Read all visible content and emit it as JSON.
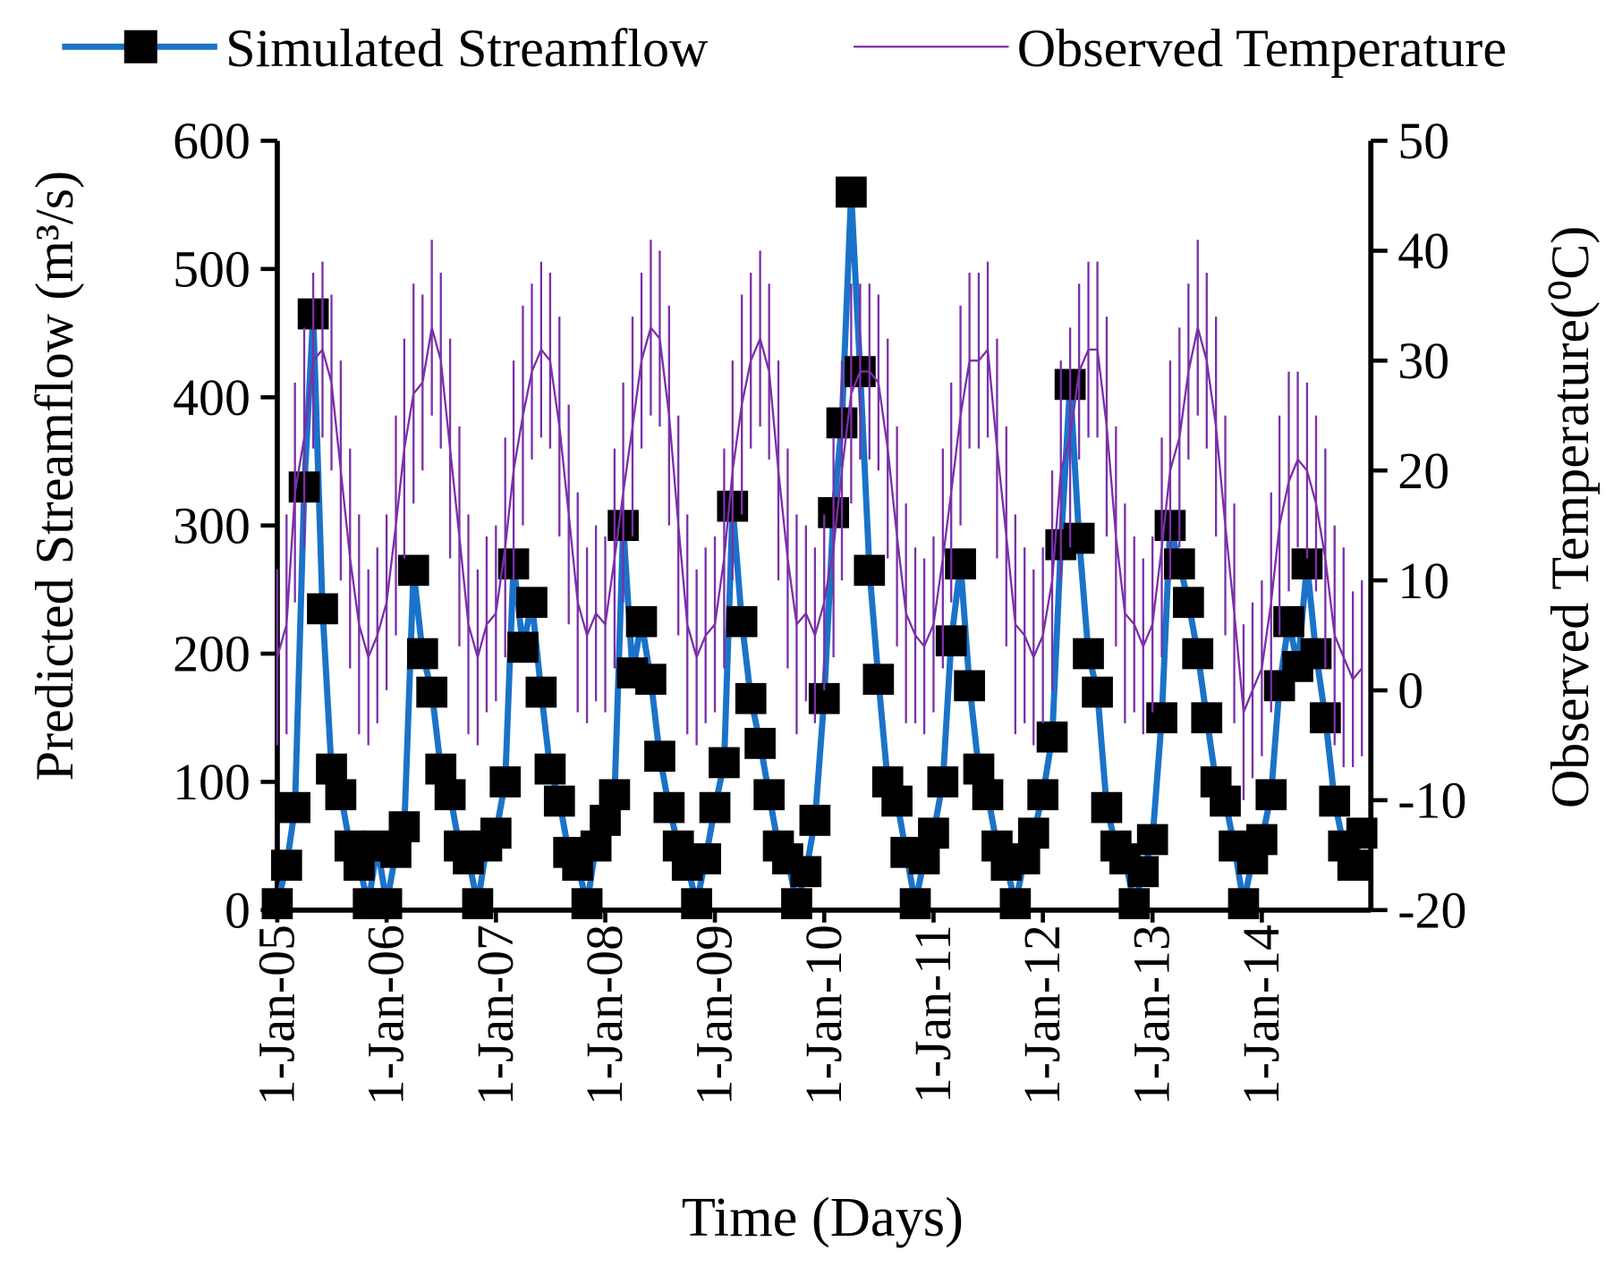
{
  "chart_data": {
    "type": "line",
    "xlabel": "Time (Days)",
    "ylabel": "Predicted Streamflow (m³/s)",
    "y2label": "Observed Temperature(⁰C)",
    "x": [
      "2005-01",
      "2005-02",
      "2005-03",
      "2005-04",
      "2005-05",
      "2005-06",
      "2005-07",
      "2005-08",
      "2005-09",
      "2005-10",
      "2005-11",
      "2005-12",
      "2006-01",
      "2006-02",
      "2006-03",
      "2006-04",
      "2006-05",
      "2006-06",
      "2006-07",
      "2006-08",
      "2006-09",
      "2006-10",
      "2006-11",
      "2006-12",
      "2007-01",
      "2007-02",
      "2007-03",
      "2007-04",
      "2007-05",
      "2007-06",
      "2007-07",
      "2007-08",
      "2007-09",
      "2007-10",
      "2007-11",
      "2007-12",
      "2008-01",
      "2008-02",
      "2008-03",
      "2008-04",
      "2008-05",
      "2008-06",
      "2008-07",
      "2008-08",
      "2008-09",
      "2008-10",
      "2008-11",
      "2008-12",
      "2009-01",
      "2009-02",
      "2009-03",
      "2009-04",
      "2009-05",
      "2009-06",
      "2009-07",
      "2009-08",
      "2009-09",
      "2009-10",
      "2009-11",
      "2009-12",
      "2010-01",
      "2010-02",
      "2010-03",
      "2010-04",
      "2010-05",
      "2010-06",
      "2010-07",
      "2010-08",
      "2010-09",
      "2010-10",
      "2010-11",
      "2010-12",
      "2011-01",
      "2011-02",
      "2011-03",
      "2011-04",
      "2011-05",
      "2011-06",
      "2011-07",
      "2011-08",
      "2011-09",
      "2011-10",
      "2011-11",
      "2011-12",
      "2012-01",
      "2012-02",
      "2012-03",
      "2012-04",
      "2012-05",
      "2012-06",
      "2012-07",
      "2012-08",
      "2012-09",
      "2012-10",
      "2012-11",
      "2012-12",
      "2013-01",
      "2013-02",
      "2013-03",
      "2013-04",
      "2013-05",
      "2013-06",
      "2013-07",
      "2013-08",
      "2013-09",
      "2013-10",
      "2013-11",
      "2013-12",
      "2014-01",
      "2014-02",
      "2014-03",
      "2014-04",
      "2014-05",
      "2014-06",
      "2014-07",
      "2014-08",
      "2014-09",
      "2014-10",
      "2014-11",
      "2014-12"
    ],
    "xlim": [
      "2005-01-01",
      "2014-12-31"
    ],
    "xticks": [
      {
        "value": "2005-01-01",
        "label": "1-Jan-05"
      },
      {
        "value": "2006-01-01",
        "label": "1-Jan-06"
      },
      {
        "value": "2007-01-01",
        "label": "1-Jan-07"
      },
      {
        "value": "2008-01-01",
        "label": "1-Jan-08"
      },
      {
        "value": "2009-01-01",
        "label": "1-Jan-09"
      },
      {
        "value": "2010-01-01",
        "label": "1-Jan-10"
      },
      {
        "value": "2011-01-01",
        "label": "1-Jan-11"
      },
      {
        "value": "2012-01-01",
        "label": "1-Jan-12"
      },
      {
        "value": "2013-01-01",
        "label": "1-Jan-13"
      },
      {
        "value": "2014-01-01",
        "label": "1-Jan-14"
      }
    ],
    "ylim": [
      0,
      600
    ],
    "yticks": [
      0,
      100,
      200,
      300,
      400,
      500,
      600
    ],
    "y2lim": [
      -20,
      50
    ],
    "y2ticks": [
      -20,
      -10,
      0,
      10,
      20,
      30,
      40,
      50
    ],
    "series": [
      {
        "name": "Simulated Streamflow",
        "color": "#1a73c8",
        "marker": "square",
        "values": [
          5,
          35,
          80,
          330,
          465,
          235,
          110,
          90,
          50,
          35,
          5,
          50,
          5,
          45,
          65,
          265,
          200,
          170,
          110,
          90,
          50,
          40,
          5,
          50,
          60,
          100,
          270,
          205,
          240,
          170,
          110,
          85,
          45,
          35,
          5,
          50,
          70,
          90,
          300,
          185,
          225,
          180,
          120,
          80,
          50,
          35,
          5,
          40,
          80,
          115,
          315,
          225,
          165,
          130,
          90,
          50,
          40,
          5,
          30,
          70,
          165,
          310,
          380,
          560,
          420,
          265,
          180,
          100,
          85,
          45,
          5,
          40,
          60,
          100,
          210,
          270,
          175,
          110,
          90,
          50,
          35,
          5,
          40,
          60,
          90,
          135,
          285,
          410,
          290,
          200,
          170,
          80,
          50,
          40,
          5,
          30,
          55,
          150,
          300,
          270,
          240,
          200,
          150,
          100,
          85,
          50,
          5,
          40,
          55,
          90,
          175,
          225,
          190,
          270,
          200,
          150,
          85,
          50,
          35,
          60
        ]
      },
      {
        "name": "Observed Temperature",
        "color": "#7b2fa8",
        "axis": "y2",
        "values": [
          3,
          6,
          18,
          23,
          30,
          31,
          28,
          20,
          12,
          6,
          3,
          5,
          8,
          15,
          22,
          27,
          28,
          33,
          30,
          22,
          14,
          6,
          3,
          6,
          7,
          13,
          20,
          25,
          29,
          31,
          30,
          24,
          16,
          8,
          5,
          7,
          6,
          12,
          18,
          24,
          30,
          33,
          32,
          25,
          15,
          6,
          3,
          5,
          6,
          12,
          20,
          26,
          30,
          32,
          29,
          20,
          12,
          6,
          7,
          5,
          8,
          13,
          20,
          27,
          29,
          29,
          28,
          22,
          14,
          7,
          5,
          4,
          6,
          12,
          18,
          25,
          30,
          30,
          31,
          22,
          14,
          6,
          5,
          3,
          5,
          10,
          20,
          23,
          29,
          31,
          31,
          24,
          14,
          7,
          6,
          4,
          6,
          13,
          20,
          23,
          29,
          33,
          30,
          24,
          15,
          7,
          -2,
          0,
          2,
          8,
          15,
          19,
          21,
          20,
          17,
          12,
          5,
          3,
          1,
          2
        ],
        "errors": [
          8,
          10,
          10,
          10,
          8,
          8,
          8,
          10,
          10,
          10,
          8,
          8,
          8,
          10,
          10,
          10,
          8,
          8,
          8,
          10,
          10,
          10,
          8,
          8,
          8,
          10,
          10,
          10,
          8,
          8,
          8,
          10,
          10,
          10,
          8,
          8,
          8,
          10,
          10,
          10,
          8,
          8,
          8,
          10,
          10,
          10,
          8,
          8,
          8,
          10,
          10,
          10,
          8,
          8,
          8,
          10,
          10,
          10,
          8,
          8,
          8,
          10,
          10,
          10,
          8,
          8,
          8,
          10,
          10,
          10,
          8,
          8,
          8,
          10,
          10,
          10,
          8,
          8,
          8,
          10,
          10,
          10,
          8,
          8,
          8,
          10,
          10,
          10,
          8,
          8,
          8,
          10,
          10,
          10,
          8,
          8,
          8,
          10,
          10,
          10,
          8,
          8,
          8,
          10,
          10,
          10,
          8,
          8,
          8,
          10,
          10,
          10,
          8,
          8,
          8,
          10,
          10,
          10,
          8,
          8
        ]
      }
    ]
  }
}
